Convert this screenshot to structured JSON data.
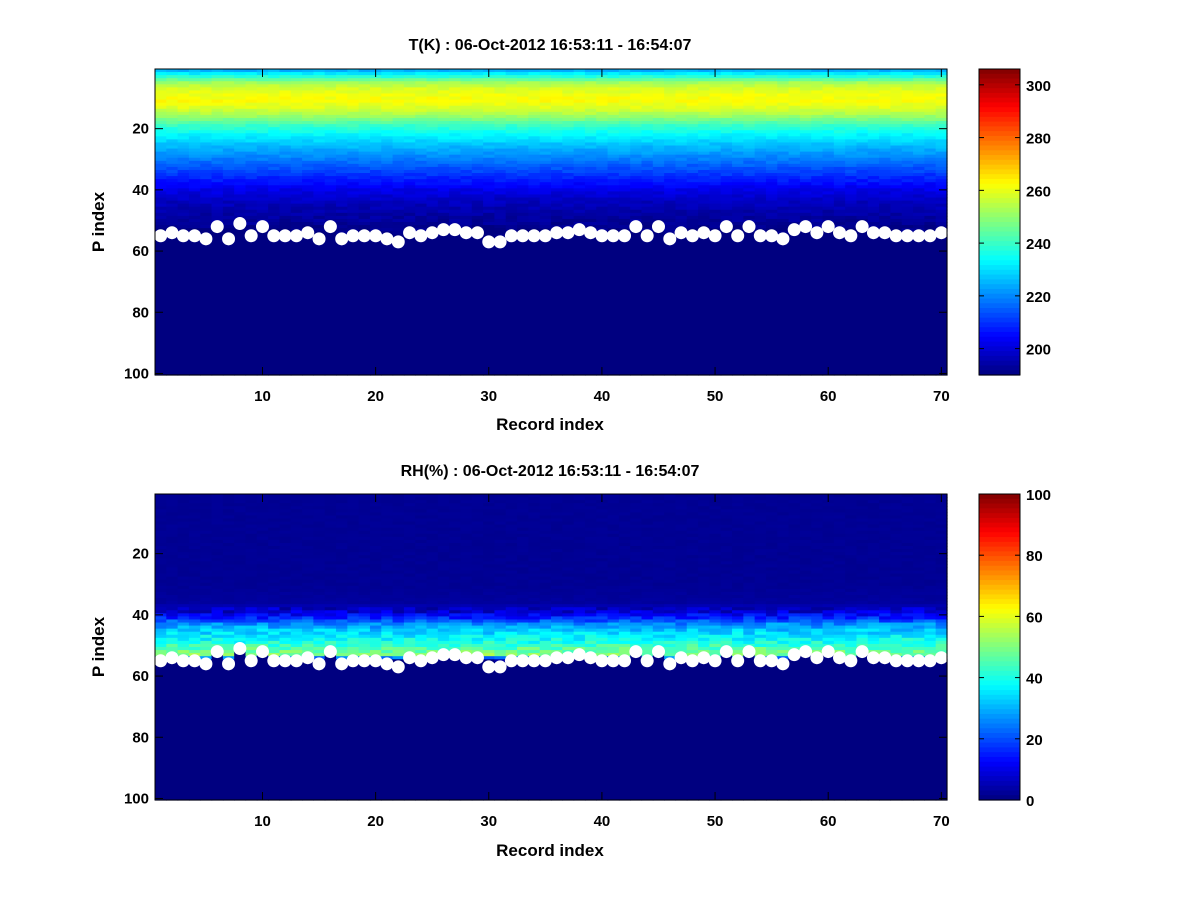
{
  "chart_data": [
    {
      "type": "heatmap",
      "title": "T(K) : 06-Oct-2012 16:53:11 - 16:54:07",
      "xlabel": "Record index",
      "ylabel": "P index",
      "xlim": [
        0.5,
        70.5
      ],
      "ylim": [
        100.5,
        0.5
      ],
      "xticks": [
        10,
        20,
        30,
        40,
        50,
        60,
        70
      ],
      "yticks": [
        20,
        40,
        60,
        80,
        100
      ],
      "colormap": "jet",
      "colorbar": {
        "min": 190,
        "max": 306,
        "ticks": [
          200,
          220,
          240,
          260,
          280,
          300
        ]
      },
      "profile_description": "Warm layer ~258-262 K near P index 5-14, cooling to ~195 K by P index 45; values below the surface markers filled with the minimum.",
      "profile": [
        {
          "p": 1,
          "v": 225
        },
        {
          "p": 3,
          "v": 238
        },
        {
          "p": 5,
          "v": 252
        },
        {
          "p": 7,
          "v": 258
        },
        {
          "p": 9,
          "v": 261
        },
        {
          "p": 11,
          "v": 262
        },
        {
          "p": 13,
          "v": 259
        },
        {
          "p": 15,
          "v": 254
        },
        {
          "p": 17,
          "v": 247
        },
        {
          "p": 19,
          "v": 240
        },
        {
          "p": 22,
          "v": 233
        },
        {
          "p": 25,
          "v": 227
        },
        {
          "p": 28,
          "v": 222
        },
        {
          "p": 31,
          "v": 217
        },
        {
          "p": 34,
          "v": 212
        },
        {
          "p": 37,
          "v": 207
        },
        {
          "p": 40,
          "v": 202
        },
        {
          "p": 44,
          "v": 197
        },
        {
          "p": 50,
          "v": 193
        },
        {
          "p": 55,
          "v": 190
        }
      ]
    },
    {
      "type": "heatmap",
      "title": "RH(%) : 06-Oct-2012 16:53:11 - 16:54:07",
      "xlabel": "Record index",
      "ylabel": "P index",
      "xlim": [
        0.5,
        70.5
      ],
      "ylim": [
        100.5,
        0.5
      ],
      "xticks": [
        10,
        20,
        30,
        40,
        50,
        60,
        70
      ],
      "yticks": [
        20,
        40,
        60,
        80,
        100
      ],
      "colormap": "jet",
      "colorbar": {
        "min": 0,
        "max": 100,
        "ticks": [
          0,
          20,
          40,
          60,
          80,
          100
        ]
      },
      "profile_description": "Near-zero humidity above P index 38, rising to ~35-55% between P index 42 and the surface markers (~53-56); zero below.",
      "profile": [
        {
          "p": 1,
          "v": 2
        },
        {
          "p": 30,
          "v": 2
        },
        {
          "p": 36,
          "v": 3
        },
        {
          "p": 39,
          "v": 8
        },
        {
          "p": 41,
          "v": 16
        },
        {
          "p": 43,
          "v": 26
        },
        {
          "p": 45,
          "v": 32
        },
        {
          "p": 47,
          "v": 36
        },
        {
          "p": 49,
          "v": 40
        },
        {
          "p": 51,
          "v": 46
        },
        {
          "p": 53,
          "v": 50
        },
        {
          "p": 55,
          "v": 0
        }
      ]
    }
  ],
  "surface_markers": {
    "description": "White dots marking the surface P index for each of the 70 records (shown on both panels).",
    "x": [
      1,
      2,
      3,
      4,
      5,
      6,
      7,
      8,
      9,
      10,
      11,
      12,
      13,
      14,
      15,
      16,
      17,
      18,
      19,
      20,
      21,
      22,
      23,
      24,
      25,
      26,
      27,
      28,
      29,
      30,
      31,
      32,
      33,
      34,
      35,
      36,
      37,
      38,
      39,
      40,
      41,
      42,
      43,
      44,
      45,
      46,
      47,
      48,
      49,
      50,
      51,
      52,
      53,
      54,
      55,
      56,
      57,
      58,
      59,
      60,
      61,
      62,
      63,
      64,
      65,
      66,
      67,
      68,
      69,
      70
    ],
    "y": [
      55,
      54,
      55,
      55,
      56,
      52,
      56,
      51,
      55,
      52,
      55,
      55,
      55,
      54,
      56,
      52,
      56,
      55,
      55,
      55,
      56,
      57,
      54,
      55,
      54,
      53,
      53,
      54,
      54,
      57,
      57,
      55,
      55,
      55,
      55,
      54,
      54,
      53,
      54,
      55,
      55,
      55,
      52,
      55,
      52,
      56,
      54,
      55,
      54,
      55,
      52,
      55,
      52,
      55,
      55,
      56,
      53,
      52,
      54,
      52,
      54,
      55,
      52,
      54,
      54,
      55,
      55,
      55,
      55,
      54
    ]
  },
  "colors": {
    "marker": "#ffffff",
    "background": "#ffffff"
  }
}
